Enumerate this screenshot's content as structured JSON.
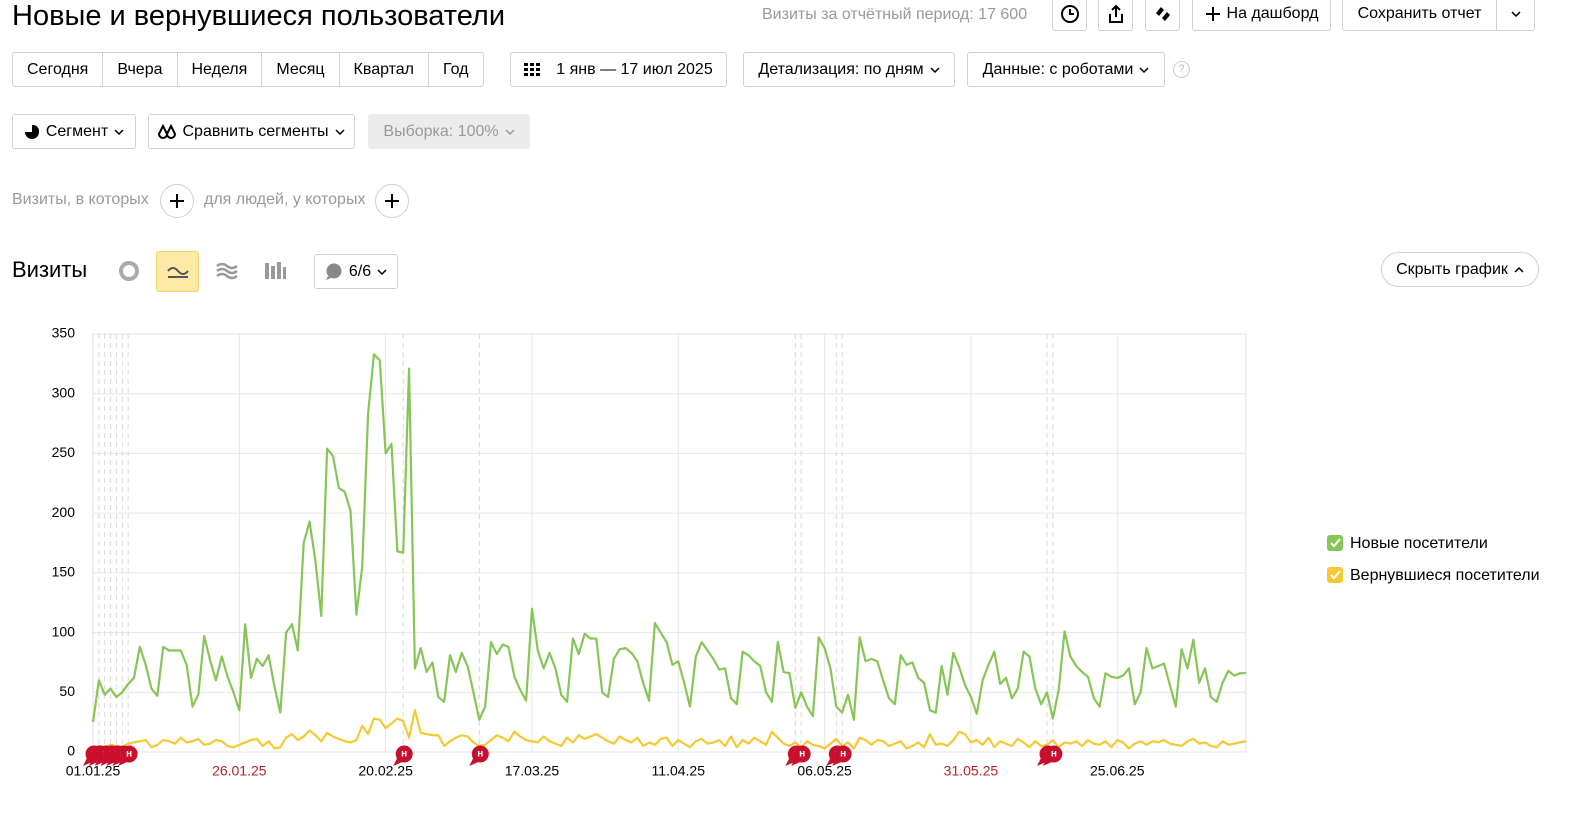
{
  "header": {
    "title": "Новые и вернувшиеся пользователи",
    "visits_summary": "Визиты за отчётный период: 17 600",
    "add_dashboard": "На дашборд",
    "save_report": "Сохранить отчет"
  },
  "periods": [
    "Сегодня",
    "Вчера",
    "Неделя",
    "Месяц",
    "Квартал",
    "Год"
  ],
  "date_range": "1 янв — 17 июл 2025",
  "detail": "Детализация: по дням",
  "data_mode": "Данные: с роботами",
  "help": "?",
  "segment": "Сегмент",
  "compare": "Сравнить сегменты",
  "sample": "Выборка: 100%",
  "filters": {
    "visits": "Визиты, в которых",
    "people": "для людей, у которых"
  },
  "chart_header": {
    "title": "Визиты",
    "notes_count": "6/6",
    "hide": "Скрыть график"
  },
  "chart_data": {
    "type": "line",
    "categories": [
      "01.01.25",
      null,
      null,
      null,
      null,
      null,
      null,
      null,
      null,
      null,
      null,
      null,
      null,
      null,
      null,
      null,
      null,
      null,
      null,
      null,
      null,
      null,
      null,
      null,
      null,
      "26.01.25",
      null,
      null,
      null,
      null,
      null,
      null,
      null,
      null,
      null,
      null,
      null,
      null,
      null,
      null,
      null,
      null,
      null,
      null,
      null,
      null,
      null,
      null,
      null,
      null,
      "20.02.25",
      null,
      null,
      null,
      null,
      null,
      null,
      null,
      null,
      null,
      null,
      null,
      null,
      null,
      null,
      null,
      null,
      null,
      null,
      null,
      null,
      null,
      null,
      null,
      null,
      "17.03.25",
      null,
      null,
      null,
      null,
      null,
      null,
      null,
      null,
      null,
      null,
      null,
      null,
      null,
      null,
      null,
      null,
      null,
      null,
      null,
      null,
      null,
      null,
      null,
      null,
      "11.04.25",
      null,
      null,
      null,
      null,
      null,
      null,
      null,
      null,
      null,
      null,
      null,
      null,
      null,
      null,
      null,
      null,
      null,
      null,
      null,
      null,
      null,
      null,
      null,
      null,
      "06.05.25",
      null,
      null,
      null,
      null,
      null,
      null,
      null,
      null,
      null,
      null,
      null,
      null,
      null,
      null,
      null,
      null,
      null,
      null,
      null,
      null,
      null,
      null,
      null,
      null,
      "31.05.25",
      null,
      null,
      null,
      null,
      null,
      null,
      null,
      null,
      null,
      null,
      null,
      null,
      null,
      null,
      null,
      null,
      null,
      null,
      null,
      null,
      null,
      null,
      null,
      null,
      "25.06.25",
      null,
      null,
      null,
      null,
      null,
      null,
      null,
      null,
      null,
      null,
      null,
      null,
      null,
      null,
      null,
      null,
      null,
      null,
      null,
      null,
      null,
      null
    ],
    "series": [
      {
        "name": "Новые посетители",
        "color": "#86c556",
        "values": [
          25,
          60,
          48,
          53,
          46,
          50,
          57,
          62,
          88,
          73,
          53,
          47,
          88,
          85,
          85,
          85,
          73,
          38,
          48,
          97,
          77,
          60,
          80,
          63,
          50,
          35,
          107,
          62,
          78,
          72,
          81,
          55,
          33,
          100,
          107,
          85,
          175,
          193,
          160,
          114,
          254,
          248,
          221,
          218,
          202,
          115,
          155,
          283,
          333,
          328,
          250,
          258,
          168,
          167,
          321,
          70,
          87,
          67,
          75,
          46,
          42,
          81,
          67,
          83,
          72,
          50,
          27,
          38,
          92,
          82,
          90,
          88,
          63,
          52,
          43,
          120,
          85,
          70,
          83,
          70,
          48,
          42,
          95,
          82,
          99,
          95,
          95,
          50,
          46,
          78,
          86,
          87,
          83,
          76,
          58,
          43,
          108,
          100,
          92,
          73,
          76,
          58,
          38,
          80,
          92,
          85,
          78,
          69,
          70,
          45,
          40,
          84,
          81,
          76,
          72,
          50,
          42,
          92,
          67,
          66,
          37,
          50,
          38,
          30,
          96,
          87,
          70,
          38,
          33,
          48,
          27,
          96,
          76,
          78,
          76,
          60,
          45,
          40,
          81,
          73,
          75,
          62,
          58,
          35,
          33,
          72,
          48,
          83,
          71,
          56,
          46,
          32,
          60,
          73,
          84,
          57,
          62,
          45,
          53,
          84,
          80,
          53,
          40,
          50,
          28,
          52,
          101,
          80,
          72,
          67,
          63,
          45,
          38,
          66,
          63,
          62,
          64,
          70,
          40,
          50,
          87,
          70,
          72,
          74,
          56,
          38,
          86,
          70,
          94,
          58,
          70,
          46,
          42,
          58,
          68,
          64,
          66,
          66
        ]
      },
      {
        "name": "Вернувшиеся посетители",
        "color": "#f5c932",
        "values": [
          3,
          5,
          4,
          6,
          5,
          4,
          7,
          8,
          9,
          10,
          4,
          6,
          10,
          9,
          7,
          12,
          8,
          9,
          11,
          6,
          7,
          10,
          9,
          5,
          4,
          6,
          8,
          10,
          11,
          5,
          9,
          3,
          4,
          12,
          15,
          10,
          13,
          18,
          14,
          9,
          16,
          13,
          11,
          9,
          8,
          10,
          22,
          15,
          28,
          27,
          20,
          24,
          28,
          26,
          12,
          35,
          16,
          15,
          14,
          14,
          5,
          9,
          12,
          14,
          13,
          8,
          5,
          6,
          10,
          14,
          12,
          9,
          17,
          13,
          10,
          9,
          8,
          13,
          9,
          7,
          5,
          12,
          8,
          14,
          11,
          13,
          15,
          12,
          9,
          7,
          13,
          10,
          8,
          12,
          5,
          8,
          6,
          11,
          12,
          5,
          10,
          7,
          4,
          9,
          11,
          7,
          8,
          10,
          5,
          13,
          4,
          10,
          7,
          12,
          9,
          6,
          17,
          12,
          7,
          5,
          8,
          4,
          9,
          6,
          5,
          3,
          7,
          11,
          5,
          8,
          3,
          12,
          10,
          6,
          10,
          9,
          5,
          7,
          9,
          3,
          5,
          8,
          4,
          15,
          6,
          7,
          5,
          10,
          17,
          15,
          8,
          10,
          6,
          12,
          4,
          9,
          7,
          5,
          11,
          8,
          4,
          9,
          5,
          6,
          10,
          4,
          8,
          7,
          9,
          5,
          10,
          7,
          6,
          9,
          4,
          10,
          8,
          3,
          7,
          9,
          6,
          9,
          8,
          10,
          7,
          6,
          5,
          9,
          11,
          7,
          8,
          5,
          4,
          9,
          6,
          7,
          8,
          9
        ]
      }
    ],
    "ylim": [
      0,
      350
    ],
    "yticks": [
      0,
      50,
      100,
      150,
      200,
      250,
      300,
      350
    ],
    "grid": true,
    "legend": "right",
    "weekend_color": "#b3262b",
    "annotations": [
      {
        "label": "н",
        "at": 0
      },
      {
        "label": "н",
        "at": 1
      },
      {
        "label": "н",
        "at": 2
      },
      {
        "label": "н",
        "at": 3
      },
      {
        "label": "н",
        "at": 4
      },
      {
        "label": "н",
        "at": 5
      },
      {
        "label": "н",
        "at": 6
      },
      {
        "label": "н",
        "at": 53
      },
      {
        "label": "н",
        "at": 66
      },
      {
        "label": "н",
        "at": 120
      },
      {
        "label": "н",
        "at": 121
      },
      {
        "label": "н",
        "at": 127
      },
      {
        "label": "н",
        "at": 128
      },
      {
        "label": "н",
        "at": 163
      },
      {
        "label": "н",
        "at": 164
      }
    ]
  }
}
